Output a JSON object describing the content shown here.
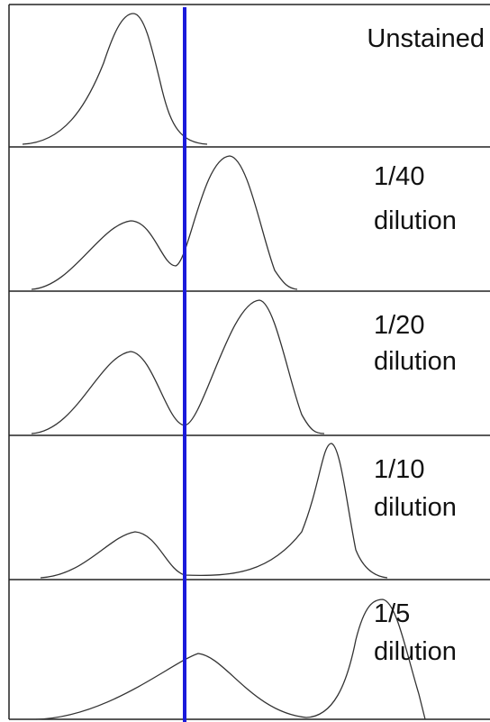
{
  "panels": [
    {
      "lines": [
        "Unstained"
      ]
    },
    {
      "lines": [
        "1/40",
        "dilution"
      ]
    },
    {
      "lines": [
        "1/20",
        "dilution"
      ]
    },
    {
      "lines": [
        "1/10",
        "dilution"
      ]
    },
    {
      "lines": [
        "1/5",
        "dilution"
      ]
    }
  ]
}
